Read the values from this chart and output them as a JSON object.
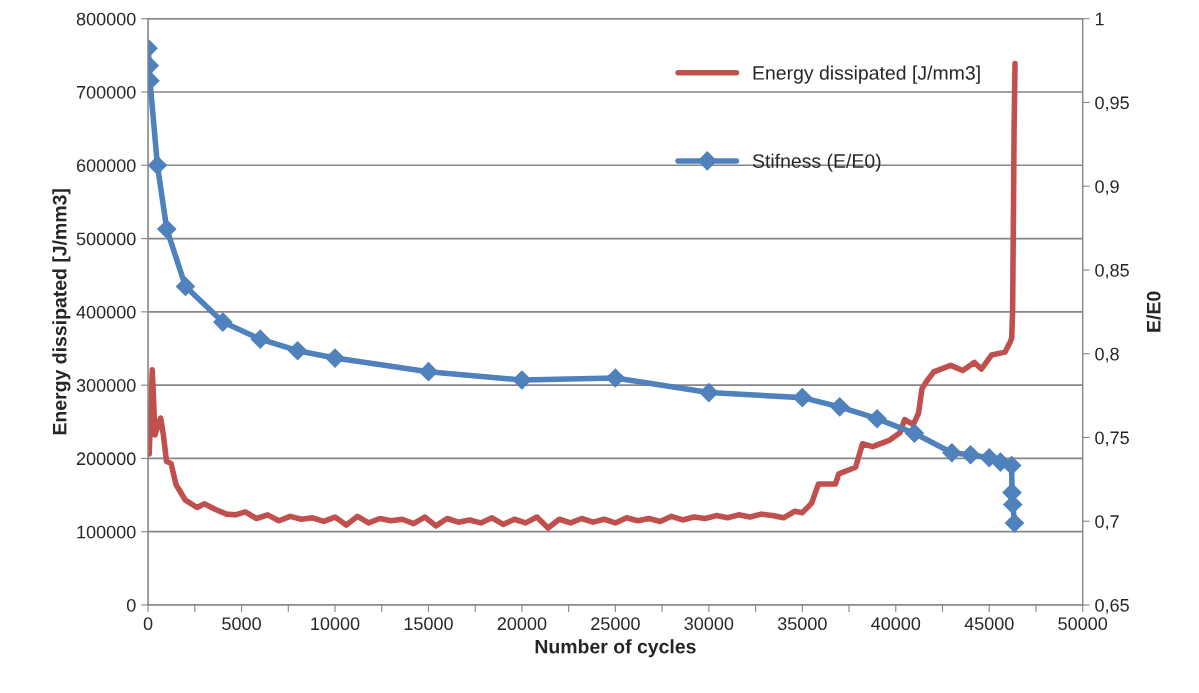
{
  "chart_data": {
    "type": "line",
    "xlabel": "Number of cycles",
    "ylabel": "Energy dissipated [J/mm3]",
    "y2label": "E/E0",
    "xlim": [
      0,
      50000
    ],
    "xticks": [
      0,
      {
        "value": 2500,
        "label": null
      },
      5000,
      {
        "value": 7500,
        "label": null
      },
      10000,
      {
        "value": 12500,
        "label": null
      },
      15000,
      {
        "value": 17500,
        "label": null
      },
      20000,
      {
        "value": 22500,
        "label": null
      },
      25000,
      {
        "value": 27500,
        "label": null
      },
      30000,
      {
        "value": 32500,
        "label": null
      },
      35000,
      {
        "value": 37500,
        "label": null
      },
      40000,
      {
        "value": 42500,
        "label": null
      },
      45000,
      {
        "value": 47500,
        "label": null
      },
      50000
    ],
    "ylim": [
      0,
      800000
    ],
    "yticks": [
      0,
      100000,
      200000,
      300000,
      400000,
      500000,
      600000,
      700000,
      800000
    ],
    "y2lim": [
      0.65,
      1
    ],
    "y2ticks": [
      {
        "value": 0.65,
        "label": "0,65"
      },
      {
        "value": 0.7,
        "label": "0,7"
      },
      {
        "value": 0.75,
        "label": "0,75"
      },
      {
        "value": 0.8,
        "label": "0,8"
      },
      {
        "value": 0.85,
        "label": "0,85"
      },
      {
        "value": 0.9,
        "label": "0,9"
      },
      {
        "value": 0.95,
        "label": "0,95"
      },
      {
        "value": 1,
        "label": "1"
      }
    ],
    "grid": "y",
    "legend": "top right",
    "series": [
      {
        "name": "Energy dissipated [J/mm3]",
        "color": "#c0504d",
        "axis": "y",
        "marker": "none",
        "x": [
          60,
          225,
          370,
          520,
          675,
          820,
          985,
          1230,
          1500,
          2000,
          2620,
          3000,
          3640,
          4200,
          4670,
          5200,
          5800,
          6400,
          7000,
          7600,
          8200,
          8800,
          9400,
          10000,
          10600,
          11200,
          11800,
          12400,
          13000,
          13600,
          14200,
          14800,
          15400,
          16000,
          16600,
          17200,
          17800,
          18400,
          19000,
          19600,
          20200,
          20800,
          21400,
          22000,
          22600,
          23200,
          23800,
          24400,
          25000,
          25600,
          26200,
          26800,
          27400,
          28000,
          28600,
          29200,
          29800,
          30400,
          31000,
          31600,
          32200,
          32800,
          33400,
          34000,
          34600,
          35000,
          35500,
          35860,
          36130,
          36770,
          36950,
          37850,
          38220,
          38760,
          39680,
          40220,
          40480,
          40940,
          41220,
          41400,
          41670,
          42030,
          42940,
          43580,
          44210,
          44580,
          45120,
          45840,
          46120,
          46200,
          46250,
          46300,
          46330,
          46380
        ],
        "values": [
          206000,
          321000,
          232000,
          245000,
          255000,
          232000,
          196000,
          193000,
          164000,
          143000,
          133000,
          138000,
          130000,
          124000,
          123000,
          127000,
          118000,
          123000,
          115000,
          121000,
          117000,
          119000,
          114000,
          120000,
          109000,
          121000,
          112000,
          118000,
          115000,
          117000,
          111000,
          120000,
          108000,
          118000,
          113000,
          116000,
          112000,
          119000,
          110000,
          117000,
          112000,
          120000,
          105000,
          117000,
          112000,
          118000,
          113000,
          117000,
          112000,
          119000,
          115000,
          118000,
          114000,
          121000,
          116000,
          120000,
          118000,
          122000,
          119000,
          123000,
          120000,
          124000,
          122000,
          119000,
          128000,
          126000,
          139000,
          165000,
          165000,
          165000,
          179000,
          188000,
          220000,
          216000,
          225000,
          235000,
          253000,
          246000,
          262000,
          295000,
          306000,
          318000,
          327000,
          320000,
          331000,
          322000,
          341000,
          345000,
          359000,
          364000,
          400000,
          550000,
          650000,
          739000
        ]
      },
      {
        "name": "Stifness (E/E0)",
        "color": "#4f81bd",
        "axis": "y2",
        "marker": "diamond",
        "x": [
          0,
          64,
          100,
          500,
          1000,
          2000,
          4000,
          6000,
          8000,
          10000,
          15000,
          20000,
          25000,
          30000,
          35000,
          37000,
          39000,
          41000,
          43000,
          44000,
          45000,
          45600,
          46200,
          46220,
          46260,
          46350
        ],
        "values": [
          0.9823,
          0.972,
          0.963,
          0.9125,
          0.8744,
          0.8402,
          0.8189,
          0.8087,
          0.8018,
          0.7974,
          0.7893,
          0.7843,
          0.7855,
          0.7768,
          0.7738,
          0.7683,
          0.7612,
          0.7525,
          0.7409,
          0.7397,
          0.7379,
          0.7353,
          0.7333,
          0.7171,
          0.71,
          0.6989
        ]
      }
    ]
  }
}
